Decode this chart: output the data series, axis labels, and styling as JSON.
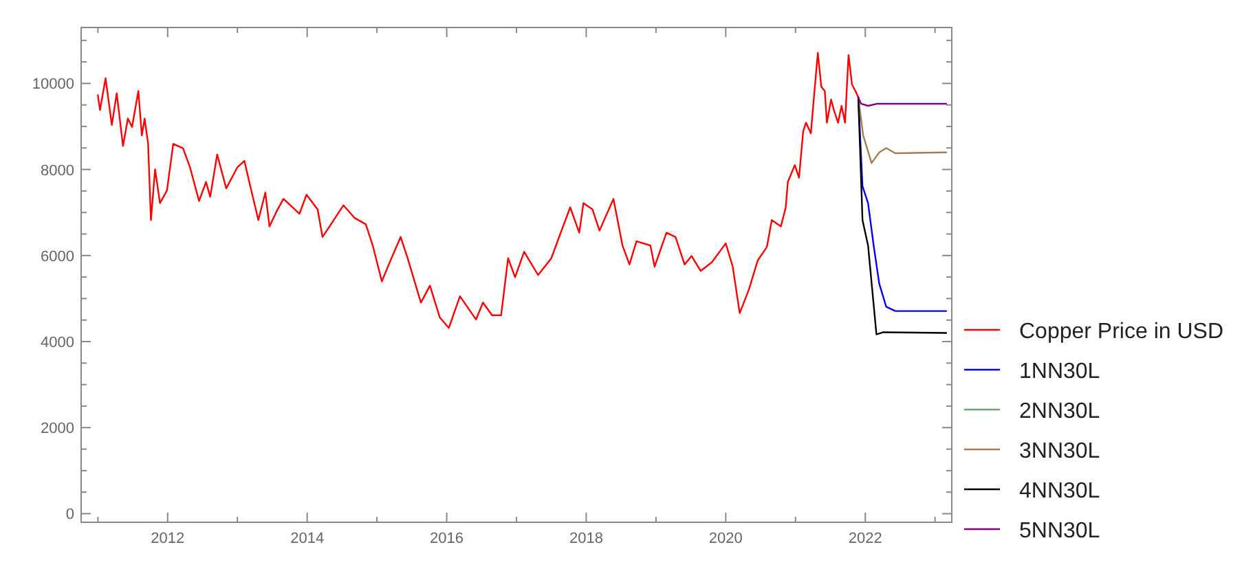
{
  "chart_data": {
    "type": "line",
    "xlim": [
      2010.76,
      2023.24
    ],
    "ylim": [
      -200,
      11300
    ],
    "xticks": [
      {
        "value": 2011,
        "label": null
      },
      2012,
      {
        "value": 2013,
        "label": null
      },
      2014,
      {
        "value": 2015,
        "label": null
      },
      2016,
      {
        "value": 2017,
        "label": null
      },
      2018,
      {
        "value": 2019,
        "label": null
      },
      2020,
      {
        "value": 2021,
        "label": null
      },
      2022,
      {
        "value": 2023,
        "label": null
      }
    ],
    "yticks": [
      0,
      {
        "value": 500,
        "label": null
      },
      2000,
      {
        "value": 1000,
        "label": null
      },
      {
        "value": 1500,
        "label": null
      },
      {
        "value": 2500,
        "label": null
      },
      {
        "value": 3000,
        "label": null
      },
      {
        "value": 3500,
        "label": null
      },
      4000,
      {
        "value": 4500,
        "label": null
      },
      {
        "value": 5000,
        "label": null
      },
      {
        "value": 5500,
        "label": null
      },
      6000,
      {
        "value": 6500,
        "label": null
      },
      {
        "value": 7000,
        "label": null
      },
      {
        "value": 7500,
        "label": null
      },
      8000,
      {
        "value": 8500,
        "label": null
      },
      {
        "value": 9000,
        "label": null
      },
      {
        "value": 9500,
        "label": null
      },
      10000,
      {
        "value": 10500,
        "label": null
      },
      {
        "value": 11000,
        "label": null
      }
    ],
    "legend": "right",
    "series": [
      {
        "name": "Copper Price in USD",
        "color": "#ff0000",
        "x": [
          2011.0,
          2011.03,
          2011.11,
          2011.2,
          2011.27,
          2011.36,
          2011.43,
          2011.49,
          2011.58,
          2011.63,
          2011.67,
          2011.72,
          2011.76,
          2011.82,
          2011.89,
          2011.99,
          2012.08,
          2012.22,
          2012.32,
          2012.45,
          2012.55,
          2012.61,
          2012.71,
          2012.84,
          2013.0,
          2013.1,
          2013.17,
          2013.3,
          2013.4,
          2013.46,
          2013.56,
          2013.66,
          2013.89,
          2013.99,
          2014.15,
          2014.22,
          2014.38,
          2014.52,
          2014.68,
          2014.84,
          2014.94,
          2015.07,
          2015.17,
          2015.34,
          2015.44,
          2015.63,
          2015.76,
          2015.9,
          2016.03,
          2016.19,
          2016.42,
          2016.52,
          2016.65,
          2016.78,
          2016.88,
          2016.98,
          2017.11,
          2017.31,
          2017.5,
          2017.6,
          2017.77,
          2017.9,
          2017.96,
          2018.09,
          2018.19,
          2018.39,
          2018.52,
          2018.62,
          2018.72,
          2018.92,
          2018.98,
          2019.15,
          2019.28,
          2019.41,
          2019.51,
          2019.64,
          2019.8,
          2020.0,
          2020.1,
          2020.2,
          2020.33,
          2020.46,
          2020.59,
          2020.66,
          2020.79,
          2020.86,
          2020.89,
          2020.99,
          2021.05,
          2021.11,
          2021.15,
          2021.22,
          2021.28,
          2021.32,
          2021.37,
          2021.42,
          2021.45,
          2021.51,
          2021.55,
          2021.61,
          2021.66,
          2021.71,
          2021.76,
          2021.81,
          2021.86,
          2021.9
        ],
        "values": [
          9726,
          9381,
          10118,
          9035,
          9773,
          8546,
          9183,
          8987,
          9823,
          8791,
          9183,
          8594,
          6823,
          8004,
          7218,
          7513,
          8594,
          8496,
          8053,
          7267,
          7709,
          7365,
          8348,
          7561,
          8053,
          8201,
          7709,
          6823,
          7463,
          6676,
          7021,
          7316,
          6971,
          7414,
          7070,
          6431,
          6823,
          7168,
          6873,
          6726,
          6233,
          5398,
          5791,
          6431,
          5938,
          4906,
          5300,
          4563,
          4316,
          5053,
          4513,
          4906,
          4611,
          4611,
          5938,
          5496,
          6086,
          5546,
          5938,
          6381,
          7119,
          6529,
          7218,
          7070,
          6578,
          7316,
          6233,
          5791,
          6332,
          6233,
          5742,
          6529,
          6431,
          5791,
          5988,
          5643,
          5841,
          6283,
          5742,
          4661,
          5201,
          5890,
          6200,
          6823,
          6676,
          7119,
          7709,
          8103,
          7808,
          8888,
          9086,
          8840,
          9971,
          10708,
          9921,
          9823,
          9086,
          9626,
          9381,
          9086,
          9478,
          9086,
          10659,
          9971,
          9823,
          9676
        ]
      },
      {
        "name": "1NN30L",
        "color": "#0000ff",
        "x": [
          2021.9,
          2021.96,
          2022.04,
          2022.12,
          2022.2,
          2022.3,
          2022.43,
          2023.16
        ],
        "values": [
          9676,
          7611,
          7218,
          6233,
          5348,
          4808,
          4710,
          4710
        ]
      },
      {
        "name": "2NN30L",
        "color": "#6aa56a"
      },
      {
        "name": "3NN30L",
        "color": "#a67c52",
        "x": [
          2021.9,
          2021.97,
          2022.09,
          2022.2,
          2022.3,
          2022.43,
          2023.16
        ],
        "values": [
          9676,
          8791,
          8151,
          8398,
          8496,
          8378,
          8398
        ]
      },
      {
        "name": "4NN30L",
        "color": "#000000",
        "x": [
          2021.9,
          2021.96,
          2022.04,
          2022.16,
          2022.26,
          2023.16
        ],
        "values": [
          9676,
          6823,
          6233,
          4168,
          4217,
          4200
        ]
      },
      {
        "name": "5NN30L",
        "color": "#800080",
        "x": [
          2021.9,
          2021.94,
          2022.04,
          2022.17,
          2023.16
        ],
        "values": [
          9676,
          9528,
          9479,
          9528,
          9528
        ]
      }
    ]
  }
}
